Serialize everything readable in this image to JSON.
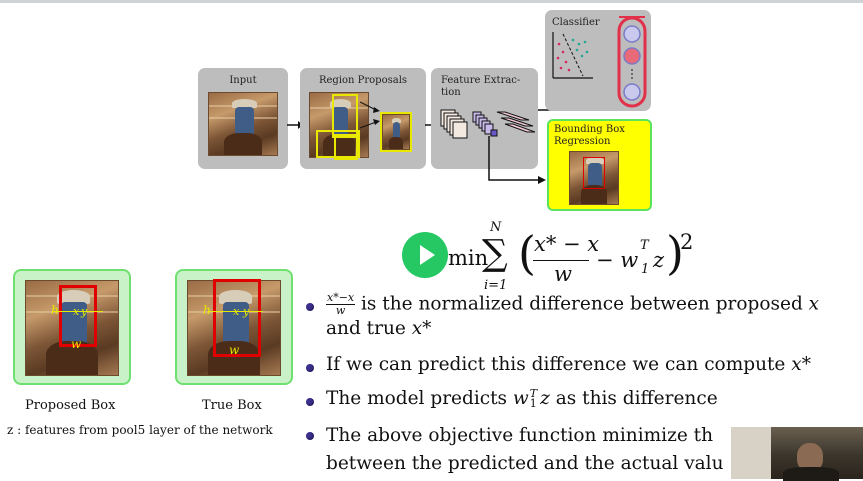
{
  "pipeline": {
    "input_label": "Input",
    "region_proposals_label": "Region Proposals",
    "feature_extraction_label_line1": "Feature Extrac-",
    "feature_extraction_label_line2": "tion",
    "classifier_label": "Classifier",
    "bbox_regression_label_line1": "Bounding Box",
    "bbox_regression_label_line2": "Regression"
  },
  "equation": {
    "prefix": "min",
    "sum_upper": "N",
    "sum_lower": "i=1",
    "numerator": "x* − x",
    "denominator": "w",
    "minus_term": "− w",
    "w_sup": "T",
    "w_sub": "1",
    "z": "z",
    "power": "2"
  },
  "thumbnails": {
    "proposed_caption": "Proposed Box",
    "true_caption": "True Box",
    "box_labels": {
      "h": "h",
      "x": "x",
      "y": "y",
      "w": "w"
    }
  },
  "feature_note": "z : features from pool5 layer of the network",
  "bullets": [
    {
      "frac_num": "x*−x",
      "frac_den": "w",
      "text_a": " is the normalized difference between proposed ",
      "var_a": "x",
      "text_b": "and true ",
      "var_b": "x*"
    },
    {
      "text": "If we can predict this difference we can compute ",
      "var": "x*"
    },
    {
      "text_a": "The model predicts ",
      "var": "w",
      "sup": "T",
      "sub": "1",
      "var2": "z",
      "text_b": " as this difference"
    },
    {
      "line1": "The above objective function minimize th",
      "line2": "between the predicted and the actual valu"
    }
  ],
  "colors": {
    "proposal_box": "#e8e800",
    "true_box": "#e00000",
    "bbox_panel": "#ffff00",
    "panel_border": "#5be35b",
    "play_button": "#26c864"
  }
}
